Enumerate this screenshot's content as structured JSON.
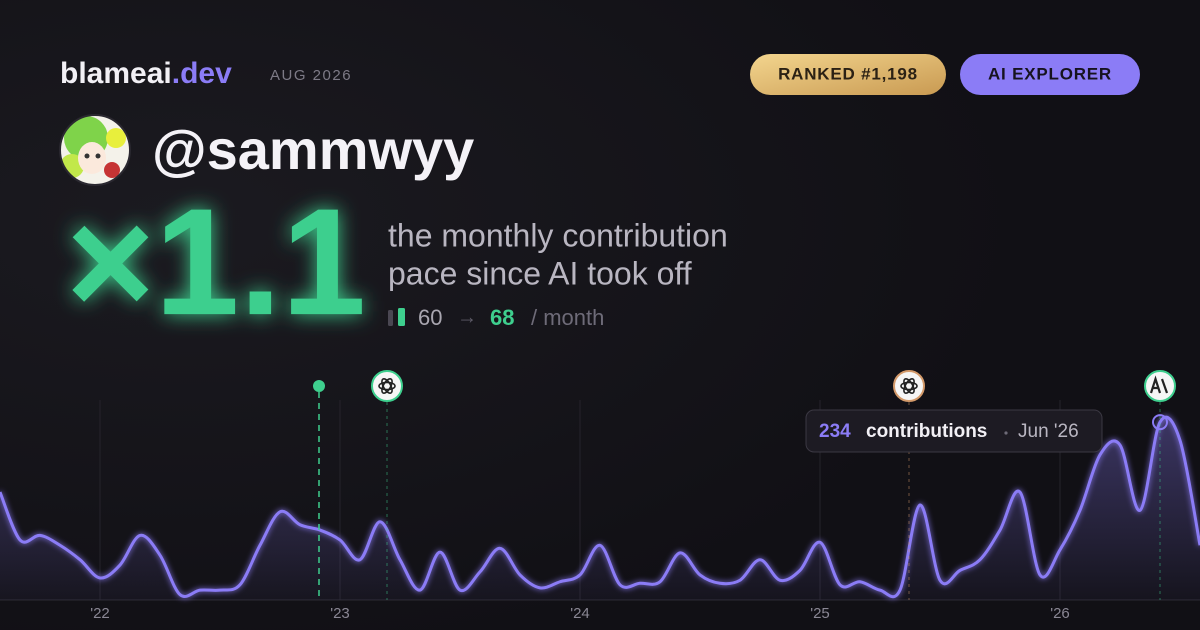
{
  "header": {
    "brand": "blameai",
    "brand_suffix": ".dev",
    "period": "AUG 2026",
    "rank_badge": "RANKED #1,198",
    "tier_badge": "AI EXPLORER"
  },
  "profile": {
    "handle": "@sammwyy"
  },
  "stat": {
    "multiplier": "×1.1",
    "description_line1": "the monthly contribution",
    "description_line2": "pace since AI took off",
    "before": "60",
    "arrow": "→",
    "after": "68",
    "unit": "/ month"
  },
  "chart_data": {
    "type": "line",
    "categories": [
      "Aug '21",
      "Sep '21",
      "Oct '21",
      "Nov '21",
      "Dec '21",
      "Jan '22",
      "Feb '22",
      "Mar '22",
      "Apr '22",
      "May '22",
      "Jun '22",
      "Jul '22",
      "Aug '22",
      "Sep '22",
      "Oct '22",
      "Nov '22",
      "Dec '22",
      "Jan '23",
      "Feb '23",
      "Mar '23",
      "Apr '23",
      "May '23",
      "Jun '23",
      "Jul '23",
      "Aug '23",
      "Sep '23",
      "Oct '23",
      "Nov '23",
      "Dec '23",
      "Jan '24",
      "Feb '24",
      "Mar '24",
      "Apr '24",
      "May '24",
      "Jun '24",
      "Jul '24",
      "Aug '24",
      "Sep '24",
      "Oct '24",
      "Nov '24",
      "Dec '24",
      "Jan '25",
      "Feb '25",
      "Mar '25",
      "Apr '25",
      "May '25",
      "Jun '25",
      "Jul '25",
      "Aug '25",
      "Sep '25",
      "Oct '25",
      "Nov '25",
      "Dec '25",
      "Jan '26",
      "Feb '26",
      "Mar '26",
      "Apr '26",
      "May '26",
      "Jun '26",
      "Jul '26",
      "Aug '26"
    ],
    "series": [
      {
        "name": "contributions",
        "color": "#8b7cf6",
        "values": [
          142,
          79,
          85,
          72,
          53,
          29,
          46,
          85,
          59,
          7,
          13,
          13,
          20,
          72,
          116,
          99,
          92,
          79,
          53,
          103,
          53,
          13,
          63,
          13,
          37,
          68,
          33,
          16,
          24,
          33,
          72,
          20,
          22,
          24,
          62,
          33,
          22,
          26,
          53,
          26,
          39,
          76,
          20,
          24,
          13,
          13,
          125,
          26,
          39,
          53,
          92,
          142,
          33,
          66,
          118,
          191,
          204,
          118,
          234,
          210,
          72
        ]
      }
    ],
    "ylim": [
      0,
      250
    ],
    "xticks": [
      {
        "value": "Jan '22",
        "label": "'22"
      },
      {
        "value": "Jan '23",
        "label": "'23"
      },
      {
        "value": "Jan '24",
        "label": "'24"
      },
      {
        "value": "Jan '25",
        "label": "'25"
      },
      {
        "value": "Jan '26",
        "label": "'26"
      }
    ],
    "grid": true,
    "tooltip": {
      "index": 58,
      "label": "contributions"
    }
  }
}
